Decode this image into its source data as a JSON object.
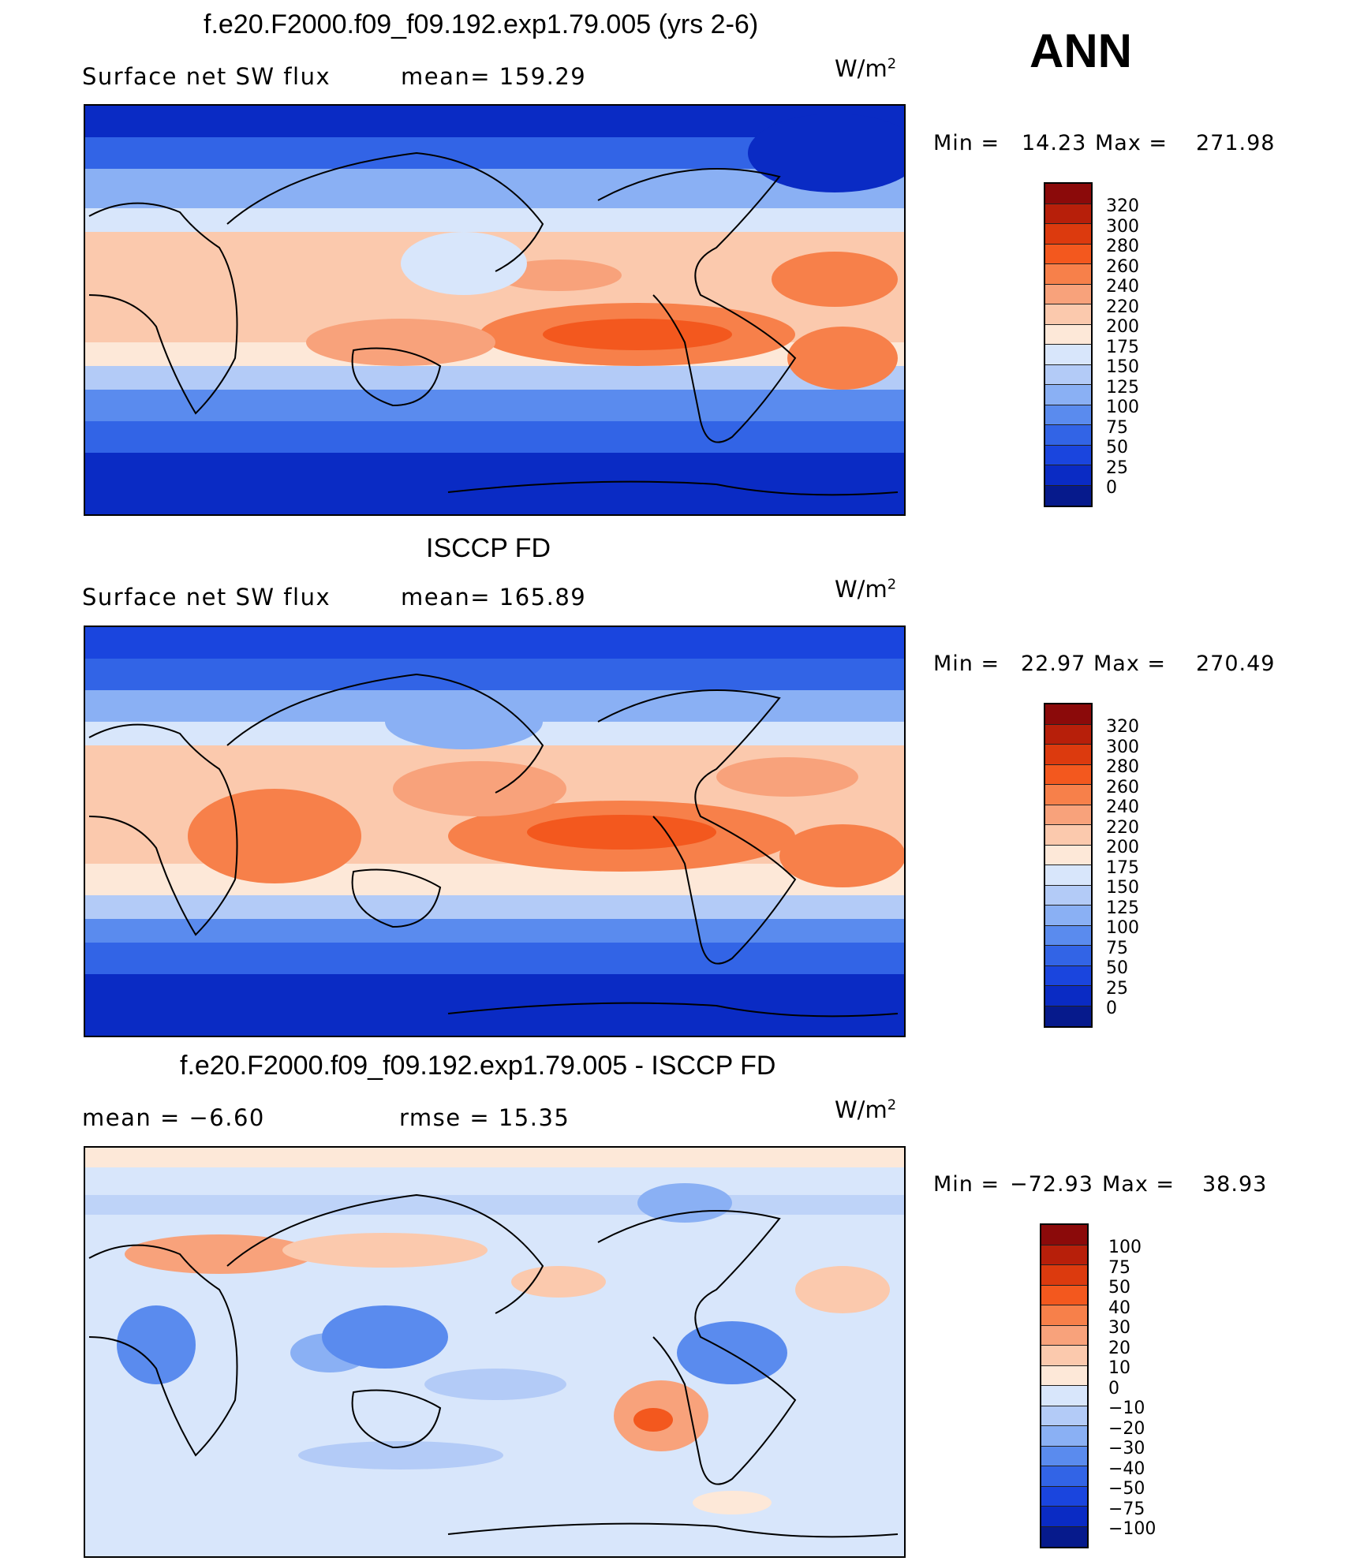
{
  "season": "ANN",
  "units_label": "W/m",
  "units_sup": "2",
  "panels": [
    {
      "title": "f.e20.F2000.f09_f09.192.exp1.79.005 (yrs 2-6)",
      "left_label": "Surface net SW flux",
      "mid_label": "mean=  159.29",
      "min_label": "Min  =",
      "min_value": "14.23",
      "max_label": "Max  =",
      "max_value": "271.98",
      "levels": [
        "320",
        "300",
        "280",
        "260",
        "240",
        "220",
        "200",
        "175",
        "150",
        "125",
        "100",
        "75",
        "50",
        "25",
        "0"
      ]
    },
    {
      "title": "ISCCP FD",
      "left_label": "Surface net SW flux",
      "mid_label": "mean=  165.89",
      "min_label": "Min  =",
      "min_value": "22.97",
      "max_label": "Max  =",
      "max_value": "270.49",
      "levels": [
        "320",
        "300",
        "280",
        "260",
        "240",
        "220",
        "200",
        "175",
        "150",
        "125",
        "100",
        "75",
        "50",
        "25",
        "0"
      ]
    },
    {
      "title": "f.e20.F2000.f09_f09.192.exp1.79.005 - ISCCP FD",
      "left_label": "mean  =     −6.60",
      "mid_label": "rmse  =     15.35",
      "min_label": "Min  =",
      "min_value": "−72.93",
      "max_label": "Max  =",
      "max_value": "38.93",
      "levels": [
        "100",
        "75",
        "50",
        "40",
        "30",
        "20",
        "10",
        "0",
        "−10",
        "−20",
        "−30",
        "−40",
        "−50",
        "−75",
        "−100"
      ]
    }
  ],
  "colors": {
    "abs_scale": [
      "#8b0a0a",
      "#b71f0a",
      "#dc3a0e",
      "#f3581e",
      "#f7804a",
      "#f8a27b",
      "#fbc9ad",
      "#fde8d8",
      "#d8e6fb",
      "#b3cbf7",
      "#8ab0f4",
      "#5a8bee",
      "#3264e6",
      "#1a45de",
      "#0a2bc4",
      "#061a8c"
    ],
    "diff_scale": [
      "#8b0a0a",
      "#b71f0a",
      "#dc3a0e",
      "#f3581e",
      "#f7804a",
      "#f8a27b",
      "#fbc9ad",
      "#fde8d8",
      "#d8e6fb",
      "#b3cbf7",
      "#8ab0f4",
      "#5a8bee",
      "#3264e6",
      "#1a45de",
      "#0a2bc4",
      "#061a8c"
    ]
  }
}
